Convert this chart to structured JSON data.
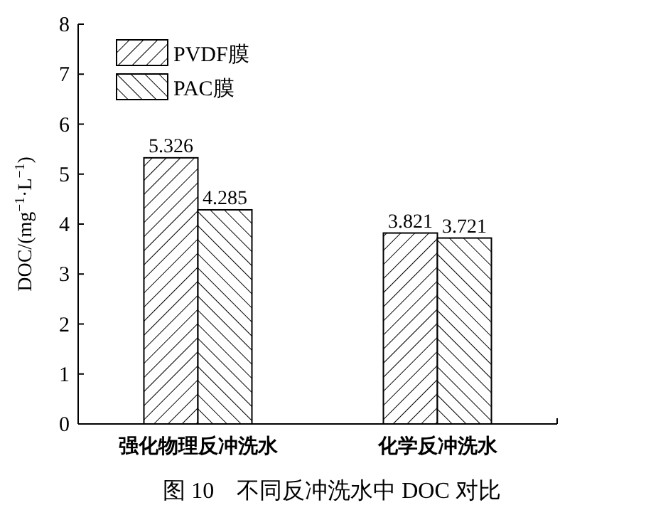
{
  "chart_data": {
    "type": "bar",
    "title": "图 10　不同反冲洗水中 DOC 对比",
    "ylabel": "DOC/(mg$^{−1}$·L$^{−1}$)",
    "categories": [
      "强化物理反冲洗水",
      "化学反冲洗水"
    ],
    "series": [
      {
        "name": "PVDF膜",
        "color": "#000000",
        "values": [
          5.326,
          3.821
        ]
      },
      {
        "name": "PAC膜",
        "color": "#000000",
        "values": [
          4.285,
          3.721
        ]
      }
    ],
    "ylim": [
      0,
      8
    ],
    "yticks": [
      0,
      1,
      2,
      3,
      4,
      5,
      6,
      7,
      8
    ],
    "data_labels": true,
    "legend": "top left",
    "grid": false
  }
}
